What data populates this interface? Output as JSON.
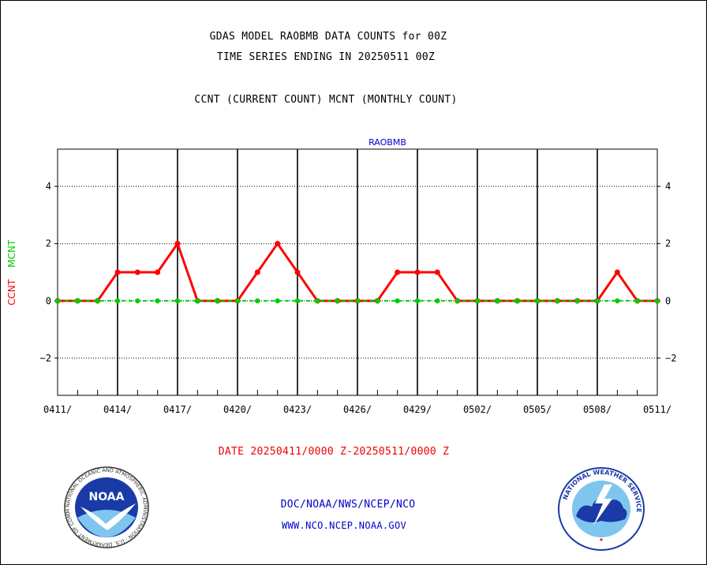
{
  "header": {
    "title_line1": "GDAS MODEL RAOBMB DATA COUNTS for 00Z",
    "title_line2": "TIME SERIES ENDING IN 20250511 00Z",
    "subtitle": "CCNT (CURRENT COUNT) MCNT (MONTHLY COUNT)"
  },
  "chart_data": {
    "type": "line",
    "panel_label": "RAOBMB",
    "ylabel_ccnt": "CCNT",
    "ylabel_mcnt": "MCNT",
    "ylim": [
      -3.3,
      5.3
    ],
    "yticks": [
      4,
      2,
      0,
      -2
    ],
    "ytick_labels": [
      "4",
      "2",
      "0",
      "−2"
    ],
    "xtick_labels": [
      "0411/",
      "0414/",
      "0417/",
      "0420/",
      "0423/",
      "0426/",
      "0429/",
      "0502/",
      "0505/",
      "0508/",
      "0511/"
    ],
    "x_days": [
      "0411",
      "0412",
      "0413",
      "0414",
      "0415",
      "0416",
      "0417",
      "0418",
      "0419",
      "0420",
      "0421",
      "0422",
      "0423",
      "0424",
      "0425",
      "0426",
      "0427",
      "0428",
      "0429",
      "0430",
      "0501",
      "0502",
      "0503",
      "0504",
      "0505",
      "0506",
      "0507",
      "0508",
      "0509",
      "0510",
      "0511"
    ],
    "series": [
      {
        "name": "CCNT",
        "color": "#ff0000",
        "values": [
          0,
          0,
          0,
          1,
          1,
          1,
          2,
          0,
          0,
          0,
          1,
          2,
          1,
          0,
          0,
          0,
          0,
          1,
          1,
          1,
          0,
          0,
          0,
          0,
          0,
          0,
          0,
          0,
          1,
          0,
          0
        ]
      },
      {
        "name": "MCNT",
        "color": "#00cc00",
        "values": [
          0,
          0,
          0,
          0,
          0,
          0,
          0,
          0,
          0,
          0,
          0,
          0,
          0,
          0,
          0,
          0,
          0,
          0,
          0,
          0,
          0,
          0,
          0,
          0,
          0,
          0,
          0,
          0,
          0,
          0,
          0
        ]
      }
    ],
    "grid": true
  },
  "footer": {
    "date_range": "DATE 20250411/0000 Z-20250511/0000 Z",
    "org_line": "DOC/NOAA/NWS/NCEP/NCO",
    "url_line": "WWW.NCO.NCEP.NOAA.GOV",
    "noaa_logo_text": "NOAA",
    "noaa_ring_text": "NATIONAL OCEANIC AND ATMOSPHERIC ADMINISTRATION · U.S. DEPARTMENT OF COMMERCE ·",
    "nws_ring_text": "NATIONAL WEATHER SERVICE"
  },
  "colors": {
    "ccnt": "#ff0000",
    "mcnt": "#00cc00",
    "label_blue": "#0000cc",
    "date_red": "#ee0000"
  }
}
